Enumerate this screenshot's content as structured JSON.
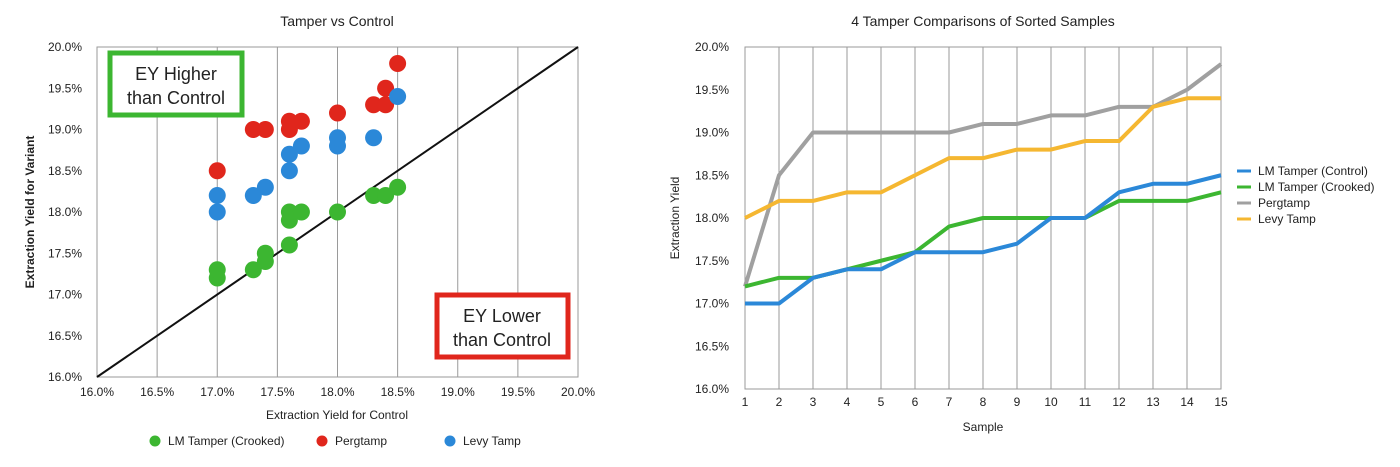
{
  "chart_data": [
    {
      "type": "scatter",
      "title": "Tamper vs Control",
      "xlabel": "Extraction Yield for Control",
      "ylabel": "Extraction Yield for Variant",
      "xlim": [
        0.16,
        0.2
      ],
      "ylim": [
        0.16,
        0.2
      ],
      "x_ticks": [
        "16.0%",
        "16.5%",
        "17.0%",
        "17.5%",
        "18.0%",
        "18.5%",
        "19.0%",
        "19.5%",
        "20.0%"
      ],
      "y_ticks": [
        "16.0%",
        "16.5%",
        "17.0%",
        "17.5%",
        "18.0%",
        "18.5%",
        "19.0%",
        "19.5%",
        "20.0%"
      ],
      "grid": "vertical",
      "legend_position": "bottom",
      "reference_line": "y = x",
      "annotations": [
        {
          "text_line1": "EY Higher",
          "text_line2": "than Control",
          "border_color": "#3cb631",
          "placement": "top-left"
        },
        {
          "text_line1": "EY Lower",
          "text_line2": "than Control",
          "border_color": "#e0261c",
          "placement": "bottom-right"
        }
      ],
      "series": [
        {
          "name": "LM Tamper (Crooked)",
          "color": "#3cb631",
          "points": [
            [
              0.17,
              0.172
            ],
            [
              0.17,
              0.173
            ],
            [
              0.173,
              0.173
            ],
            [
              0.174,
              0.174
            ],
            [
              0.174,
              0.175
            ],
            [
              0.176,
              0.176
            ],
            [
              0.176,
              0.179
            ],
            [
              0.176,
              0.18
            ],
            [
              0.177,
              0.18
            ],
            [
              0.18,
              0.18
            ],
            [
              0.183,
              0.182
            ],
            [
              0.184,
              0.182
            ],
            [
              0.185,
              0.183
            ]
          ]
        },
        {
          "name": "Pergtamp",
          "color": "#e0261c",
          "points": [
            [
              0.17,
              0.185
            ],
            [
              0.173,
              0.19
            ],
            [
              0.174,
              0.19
            ],
            [
              0.176,
              0.19
            ],
            [
              0.176,
              0.191
            ],
            [
              0.177,
              0.191
            ],
            [
              0.18,
              0.192
            ],
            [
              0.183,
              0.193
            ],
            [
              0.184,
              0.193
            ],
            [
              0.184,
              0.195
            ],
            [
              0.185,
              0.198
            ]
          ]
        },
        {
          "name": "Levy Tamp",
          "color": "#2b88d8",
          "points": [
            [
              0.17,
              0.18
            ],
            [
              0.17,
              0.182
            ],
            [
              0.173,
              0.182
            ],
            [
              0.174,
              0.183
            ],
            [
              0.176,
              0.185
            ],
            [
              0.176,
              0.187
            ],
            [
              0.177,
              0.188
            ],
            [
              0.18,
              0.188
            ],
            [
              0.18,
              0.189
            ],
            [
              0.183,
              0.189
            ],
            [
              0.185,
              0.194
            ]
          ]
        }
      ]
    },
    {
      "type": "line",
      "title": "4 Tamper Comparisons of Sorted Samples",
      "xlabel": "Sample",
      "ylabel": "Extraction Yield",
      "x": [
        1,
        2,
        3,
        4,
        5,
        6,
        7,
        8,
        9,
        10,
        11,
        12,
        13,
        14,
        15
      ],
      "x_ticks": [
        "1",
        "2",
        "3",
        "4",
        "5",
        "6",
        "7",
        "8",
        "9",
        "10",
        "11",
        "12",
        "13",
        "14",
        "15"
      ],
      "y_ticks": [
        "16.0%",
        "16.5%",
        "17.0%",
        "17.5%",
        "18.0%",
        "18.5%",
        "19.0%",
        "19.5%",
        "20.0%"
      ],
      "ylim": [
        0.16,
        0.2
      ],
      "grid": "vertical",
      "legend_position": "right",
      "series": [
        {
          "name": "LM Tamper (Control)",
          "color": "#2b88d8",
          "values": [
            0.17,
            0.17,
            0.173,
            0.174,
            0.174,
            0.176,
            0.176,
            0.176,
            0.177,
            0.18,
            0.18,
            0.183,
            0.184,
            0.184,
            0.185
          ]
        },
        {
          "name": "LM Tamper (Crooked)",
          "color": "#3cb631",
          "values": [
            0.172,
            0.173,
            0.173,
            0.174,
            0.175,
            0.176,
            0.179,
            0.18,
            0.18,
            0.18,
            0.18,
            0.182,
            0.182,
            0.182,
            0.183
          ]
        },
        {
          "name": "Pergtamp",
          "color": "#a0a0a0",
          "values": [
            0.172,
            0.185,
            0.19,
            0.19,
            0.19,
            0.19,
            0.19,
            0.191,
            0.191,
            0.192,
            0.192,
            0.193,
            0.193,
            0.195,
            0.198
          ]
        },
        {
          "name": "Levy Tamp",
          "color": "#f5b731",
          "values": [
            0.18,
            0.182,
            0.182,
            0.183,
            0.183,
            0.185,
            0.187,
            0.187,
            0.188,
            0.188,
            0.189,
            0.189,
            0.193,
            0.194,
            0.194
          ]
        }
      ]
    }
  ]
}
